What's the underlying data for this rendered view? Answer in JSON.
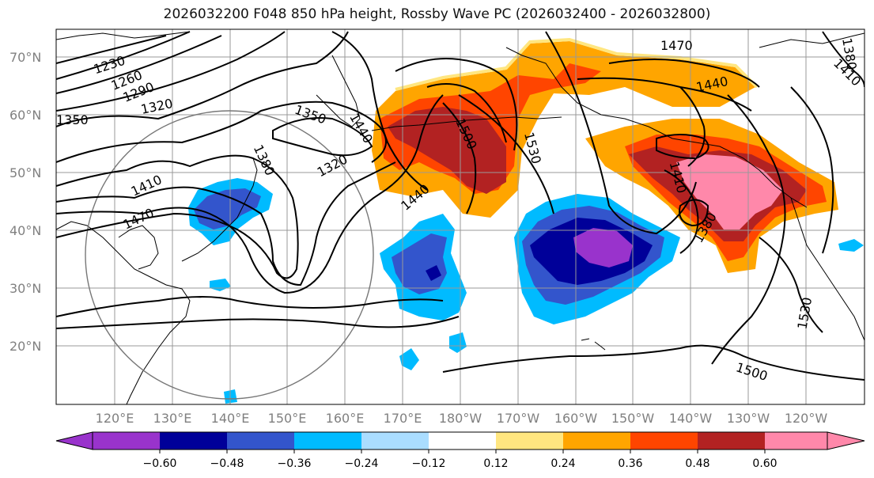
{
  "title": "2026032200 F048 850 hPa height, Rossby Wave PC (2026032400 - 2026032800)",
  "lat_labels": [
    "70°N",
    "60°N",
    "50°N",
    "40°N",
    "30°N",
    "20°N"
  ],
  "lon_labels": [
    "120°E",
    "130°E",
    "140°E",
    "150°E",
    "160°E",
    "170°E",
    "180°W",
    "170°W",
    "160°W",
    "150°W",
    "140°W",
    "130°W",
    "120°W"
  ],
  "contour_labels": [
    "1230",
    "1260",
    "1290",
    "1320",
    "1350",
    "1350",
    "1320",
    "1380",
    "1410",
    "1440",
    "1470",
    "1440",
    "1500",
    "1530",
    "1470",
    "1440",
    "1410",
    "1380",
    "1530",
    "1500",
    "1380",
    "1410"
  ],
  "colorbar": {
    "tick_labels": [
      "−0.60",
      "−0.48",
      "−0.36",
      "−0.24",
      "−0.12",
      "0.12",
      "0.24",
      "0.36",
      "0.48",
      "0.60"
    ],
    "colors": [
      "#9933cc",
      "#000099",
      "#3355cc",
      "#00bbff",
      "#aaddff",
      "#ffffff",
      "#ffe680",
      "#ffa500",
      "#ff4500",
      "#b22222",
      "#ff88aa"
    ]
  },
  "shading_colors": {
    "purple": "#9933cc",
    "navy": "#000099",
    "blue": "#3355cc",
    "cyan": "#00bbff",
    "yellow": "#ffe680",
    "orange": "#ffa500",
    "redorange": "#ff4500",
    "darkred": "#b22222",
    "pink": "#ff88aa"
  }
}
